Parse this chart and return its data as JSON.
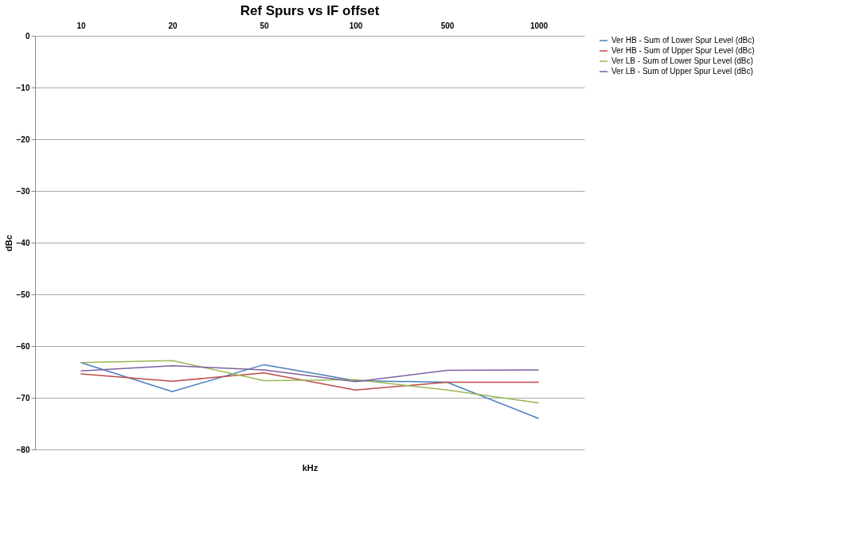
{
  "chart_data": {
    "type": "line",
    "title": "Ref Spurs vs IF offset",
    "xlabel": "kHz",
    "ylabel": "dBc",
    "categories": [
      "10",
      "20",
      "50",
      "100",
      "500",
      "1000"
    ],
    "series": [
      {
        "name": "Ver HB - Sum of Lower Spur Level (dBc)",
        "color": "#4a7ebb",
        "values": [
          -63.2,
          -68.8,
          -63.6,
          -66.7,
          -67,
          -74
        ]
      },
      {
        "name": "Ver HB - Sum of Upper Spur Level (dBc)",
        "color": "#be4b48",
        "values": [
          -65.4,
          -66.8,
          -65.2,
          -68.5,
          -67,
          -67
        ]
      },
      {
        "name": "Ver LB - Sum of Lower Spur Level (dBc)",
        "color": "#98b954",
        "values": [
          -63.2,
          -62.8,
          -66.7,
          -66.5,
          -68.5,
          -71
        ]
      },
      {
        "name": "Ver LB - Sum of Upper Spur Level (dBc)",
        "color": "#7d60a0",
        "values": [
          -64.8,
          -63.8,
          -64.6,
          -66.9,
          -64.7,
          -64.6
        ]
      }
    ],
    "ylim": [
      -80,
      0
    ],
    "yticks": [
      0,
      -10,
      -20,
      -30,
      -40,
      -50,
      -60,
      -70,
      -80
    ],
    "grid": "y",
    "legend": "right",
    "marker": "none",
    "line_style": "solid"
  }
}
